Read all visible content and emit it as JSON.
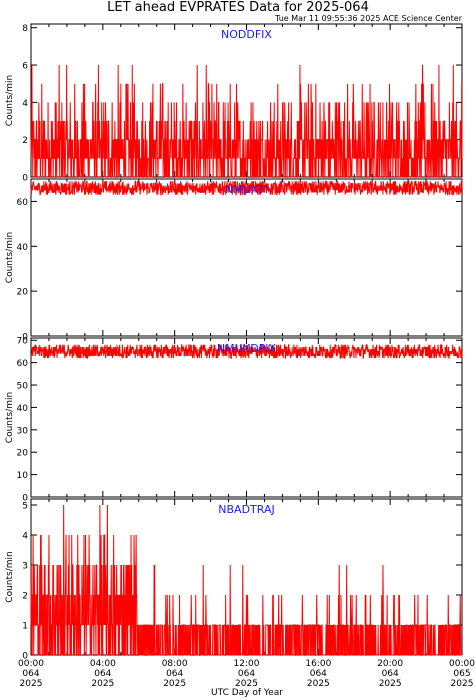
{
  "header": {
    "title": "LET ahead EVPRATES Data for 2025-064",
    "subtitle": "Tue Mar 11 09:55:36 2025 ACE Science Center"
  },
  "xaxis": {
    "label": "UTC Day of Year",
    "ticks": [
      {
        "hour": 0,
        "time": "00:00",
        "doy": "064",
        "year": "2025"
      },
      {
        "hour": 4,
        "time": "04:00",
        "doy": "064",
        "year": "2025"
      },
      {
        "hour": 8,
        "time": "08:00",
        "doy": "064",
        "year": "2025"
      },
      {
        "hour": 12,
        "time": "12:00",
        "doy": "064",
        "year": "2025"
      },
      {
        "hour": 16,
        "time": "16:00",
        "doy": "064",
        "year": "2025"
      },
      {
        "hour": 20,
        "time": "20:00",
        "doy": "064",
        "year": "2025"
      },
      {
        "hour": 24,
        "time": "00:00",
        "doy": "065",
        "year": "2025"
      }
    ]
  },
  "colors": {
    "trace": "#ff0000",
    "panel_label": "#1a1aff",
    "axis": "#000000"
  },
  "chart_data": [
    {
      "type": "line",
      "series": [
        {
          "name": "NODDFIX"
        }
      ],
      "ylabel": "Counts/min",
      "ylim": [
        0,
        8.2
      ],
      "yticks": [
        0,
        2,
        4,
        6,
        8
      ],
      "xlim": [
        0,
        24
      ],
      "typical_range": [
        0,
        6
      ],
      "typical_level": 2
    },
    {
      "type": "line",
      "series": [
        {
          "name": "NMUXTI"
        }
      ],
      "ylabel": "Counts/min",
      "ylim": [
        0,
        70
      ],
      "yticks": [
        0,
        20,
        40,
        60
      ],
      "xlim": [
        0,
        24
      ],
      "typical_range": [
        63,
        69
      ],
      "typical_level": 66
    },
    {
      "type": "line",
      "series": [
        {
          "name": "NMUXDPIX"
        }
      ],
      "ylabel": "Counts/min",
      "ylim": [
        0,
        71
      ],
      "yticks": [
        0,
        10,
        20,
        30,
        40,
        50,
        60,
        70
      ],
      "xlim": [
        0,
        24
      ],
      "typical_range": [
        62,
        68
      ],
      "typical_level": 65
    },
    {
      "type": "line",
      "series": [
        {
          "name": "NBADTRAJ"
        }
      ],
      "ylabel": "Counts/min",
      "ylim": [
        0,
        5.2
      ],
      "yticks": [
        0,
        1,
        2,
        3,
        4,
        5
      ],
      "xlim": [
        0,
        24
      ],
      "typical_range": [
        0,
        5
      ],
      "typical_level": 1
    }
  ]
}
